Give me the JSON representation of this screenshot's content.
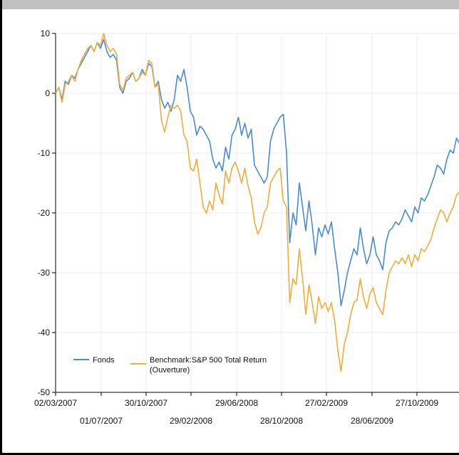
{
  "chart_data": {
    "type": "line",
    "title": "",
    "xlabel": "",
    "ylabel": "",
    "ylim": [
      -50,
      10
    ],
    "yticks": [
      10,
      0,
      -10,
      -20,
      -30,
      -40,
      -50
    ],
    "xticks_row1": [
      "02/03/2007",
      "30/10/2007",
      "29/06/2008",
      "27/02/2009",
      "27/10/2009"
    ],
    "xticks_row2": [
      "01/07/2007",
      "29/02/2008",
      "28/10/2008",
      "28/06/2009"
    ],
    "grid": true,
    "legend_position": "bottom-left",
    "colors": {
      "Fonds": "#4a8ad8",
      "Benchmark": "#f0ad3a"
    },
    "series": [
      {
        "name": "Fonds",
        "legend_lines": [
          "Fonds"
        ],
        "points": [
          [
            0,
            0
          ],
          [
            1,
            1
          ],
          [
            2,
            -1
          ],
          [
            3,
            2
          ],
          [
            4,
            1.5
          ],
          [
            5,
            3
          ],
          [
            6,
            2.5
          ],
          [
            7,
            4
          ],
          [
            8,
            5
          ],
          [
            9,
            6
          ],
          [
            10,
            7
          ],
          [
            11,
            8
          ],
          [
            12,
            7
          ],
          [
            13,
            8.5
          ],
          [
            14,
            7.5
          ],
          [
            15,
            9
          ],
          [
            16,
            7
          ],
          [
            17,
            6
          ],
          [
            18,
            6.5
          ],
          [
            19,
            5.5
          ],
          [
            20,
            1
          ],
          [
            21,
            0
          ],
          [
            22,
            2
          ],
          [
            23,
            2.5
          ],
          [
            24,
            3.5
          ],
          [
            25,
            2
          ],
          [
            26,
            2.5
          ],
          [
            27,
            4
          ],
          [
            28,
            3
          ],
          [
            29,
            5
          ],
          [
            30,
            4.5
          ],
          [
            31,
            1
          ],
          [
            32,
            2
          ],
          [
            33,
            -1
          ],
          [
            34,
            -2.5
          ],
          [
            35,
            -1.5
          ],
          [
            36,
            -3
          ],
          [
            37,
            -1
          ],
          [
            38,
            3
          ],
          [
            39,
            2
          ],
          [
            40,
            4
          ],
          [
            41,
            1
          ],
          [
            42,
            -3
          ],
          [
            43,
            -4
          ],
          [
            44,
            -7
          ],
          [
            45,
            -5.5
          ],
          [
            46,
            -6
          ],
          [
            47,
            -7
          ],
          [
            48,
            -8
          ],
          [
            49,
            -11
          ],
          [
            50,
            -12.5
          ],
          [
            51,
            -11.5
          ],
          [
            52,
            -13
          ],
          [
            53,
            -9
          ],
          [
            54,
            -11
          ],
          [
            55,
            -7
          ],
          [
            56,
            -6
          ],
          [
            57,
            -4
          ],
          [
            58,
            -7
          ],
          [
            59,
            -5
          ],
          [
            60,
            -7.5
          ],
          [
            61,
            -6
          ],
          [
            62,
            -12
          ],
          [
            63,
            -13
          ],
          [
            64,
            -14
          ],
          [
            65,
            -15
          ],
          [
            66,
            -14
          ],
          [
            67,
            -8
          ],
          [
            68,
            -6
          ],
          [
            69,
            -5
          ],
          [
            70,
            -4
          ],
          [
            71,
            -3.5
          ],
          [
            72,
            -10
          ],
          [
            73,
            -25
          ],
          [
            74,
            -20
          ],
          [
            75,
            -22
          ],
          [
            76,
            -15
          ],
          [
            77,
            -19
          ],
          [
            78,
            -23
          ],
          [
            79,
            -18
          ],
          [
            80,
            -22
          ],
          [
            81,
            -27
          ],
          [
            82,
            -22.5
          ],
          [
            83,
            -24
          ],
          [
            84,
            -22
          ],
          [
            85,
            -23.5
          ],
          [
            86,
            -21.5
          ],
          [
            87,
            -26
          ],
          [
            88,
            -30
          ],
          [
            89,
            -35.5
          ],
          [
            90,
            -33
          ],
          [
            91,
            -30
          ],
          [
            92,
            -28
          ],
          [
            93,
            -26
          ],
          [
            94,
            -27
          ],
          [
            95,
            -22.5
          ],
          [
            96,
            -26
          ],
          [
            97,
            -28.5
          ],
          [
            98,
            -27
          ],
          [
            99,
            -24
          ],
          [
            100,
            -27
          ],
          [
            101,
            -28
          ],
          [
            102,
            -29.5
          ],
          [
            103,
            -25
          ],
          [
            104,
            -23
          ],
          [
            105,
            -22.5
          ],
          [
            106,
            -21.5
          ],
          [
            107,
            -22
          ],
          [
            108,
            -21
          ],
          [
            109,
            -19.5
          ],
          [
            110,
            -20.5
          ],
          [
            111,
            -21.5
          ],
          [
            112,
            -19
          ],
          [
            113,
            -20
          ],
          [
            114,
            -17.5
          ],
          [
            115,
            -18
          ],
          [
            116,
            -17
          ],
          [
            117,
            -15.5
          ],
          [
            118,
            -14
          ],
          [
            119,
            -12
          ],
          [
            120,
            -12.5
          ],
          [
            121,
            -13.5
          ],
          [
            122,
            -11
          ],
          [
            123,
            -9.5
          ],
          [
            124,
            -10
          ],
          [
            125,
            -7.5
          ],
          [
            126,
            -8.5
          ]
        ]
      },
      {
        "name": "Benchmark:S&P 500 Total Return (Ouverture)",
        "legend_lines": [
          "Benchmark:S&P 500 Total Return",
          "(Ouverture)"
        ],
        "points": [
          [
            0,
            0
          ],
          [
            1,
            1
          ],
          [
            2,
            -1.5
          ],
          [
            3,
            1.5
          ],
          [
            4,
            2
          ],
          [
            5,
            3
          ],
          [
            6,
            2
          ],
          [
            7,
            4
          ],
          [
            8,
            5.5
          ],
          [
            9,
            6.5
          ],
          [
            10,
            7.5
          ],
          [
            11,
            8
          ],
          [
            12,
            7
          ],
          [
            13,
            8.5
          ],
          [
            14,
            8
          ],
          [
            15,
            10
          ],
          [
            16,
            8
          ],
          [
            17,
            7
          ],
          [
            18,
            7.5
          ],
          [
            19,
            6.5
          ],
          [
            20,
            1.5
          ],
          [
            21,
            0.5
          ],
          [
            22,
            2.5
          ],
          [
            23,
            3
          ],
          [
            24,
            3.5
          ],
          [
            25,
            2
          ],
          [
            26,
            2.5
          ],
          [
            27,
            3.5
          ],
          [
            28,
            3
          ],
          [
            29,
            5.5
          ],
          [
            30,
            5
          ],
          [
            31,
            1
          ],
          [
            32,
            1.5
          ],
          [
            33,
            -4.5
          ],
          [
            34,
            -6.5
          ],
          [
            35,
            -4
          ],
          [
            36,
            -2
          ],
          [
            37,
            -2.5
          ],
          [
            38,
            -2
          ],
          [
            39,
            -3
          ],
          [
            40,
            -7
          ],
          [
            41,
            -8
          ],
          [
            42,
            -12.5
          ],
          [
            43,
            -13
          ],
          [
            44,
            -11
          ],
          [
            45,
            -15
          ],
          [
            46,
            -19
          ],
          [
            47,
            -20
          ],
          [
            48,
            -18
          ],
          [
            49,
            -19.5
          ],
          [
            50,
            -15
          ],
          [
            51,
            -17
          ],
          [
            52,
            -18.5
          ],
          [
            53,
            -13
          ],
          [
            54,
            -15
          ],
          [
            55,
            -12.5
          ],
          [
            56,
            -11.5
          ],
          [
            57,
            -13
          ],
          [
            58,
            -15
          ],
          [
            59,
            -12.5
          ],
          [
            60,
            -15.5
          ],
          [
            61,
            -17.5
          ],
          [
            62,
            -21.5
          ],
          [
            63,
            -23.5
          ],
          [
            64,
            -22.5
          ],
          [
            65,
            -20
          ],
          [
            66,
            -19
          ],
          [
            67,
            -15
          ],
          [
            68,
            -14
          ],
          [
            69,
            -13
          ],
          [
            70,
            -12.5
          ],
          [
            71,
            -18
          ],
          [
            72,
            -19
          ],
          [
            73,
            -35
          ],
          [
            74,
            -31
          ],
          [
            75,
            -32
          ],
          [
            76,
            -26
          ],
          [
            77,
            -31
          ],
          [
            78,
            -37
          ],
          [
            79,
            -32
          ],
          [
            80,
            -35
          ],
          [
            81,
            -38.5
          ],
          [
            82,
            -34
          ],
          [
            83,
            -36
          ],
          [
            84,
            -35
          ],
          [
            85,
            -36.5
          ],
          [
            86,
            -35
          ],
          [
            87,
            -38
          ],
          [
            88,
            -43
          ],
          [
            89,
            -46.5
          ],
          [
            90,
            -42
          ],
          [
            91,
            -40
          ],
          [
            92,
            -37
          ],
          [
            93,
            -35
          ],
          [
            94,
            -34.5
          ],
          [
            95,
            -31
          ],
          [
            96,
            -34
          ],
          [
            97,
            -36
          ],
          [
            98,
            -33.5
          ],
          [
            99,
            -32.5
          ],
          [
            100,
            -35
          ],
          [
            101,
            -36
          ],
          [
            102,
            -37
          ],
          [
            103,
            -33
          ],
          [
            104,
            -30
          ],
          [
            105,
            -29
          ],
          [
            106,
            -28
          ],
          [
            107,
            -28.5
          ],
          [
            108,
            -27.5
          ],
          [
            109,
            -28.5
          ],
          [
            110,
            -27
          ],
          [
            111,
            -29
          ],
          [
            112,
            -27
          ],
          [
            113,
            -28
          ],
          [
            114,
            -26
          ],
          [
            115,
            -26.5
          ],
          [
            116,
            -25.5
          ],
          [
            117,
            -24.5
          ],
          [
            118,
            -22.5
          ],
          [
            119,
            -21
          ],
          [
            120,
            -19.5
          ],
          [
            121,
            -20
          ],
          [
            122,
            -21.5
          ],
          [
            123,
            -20
          ],
          [
            124,
            -19
          ],
          [
            125,
            -17
          ],
          [
            126,
            -16.5
          ]
        ]
      }
    ]
  }
}
